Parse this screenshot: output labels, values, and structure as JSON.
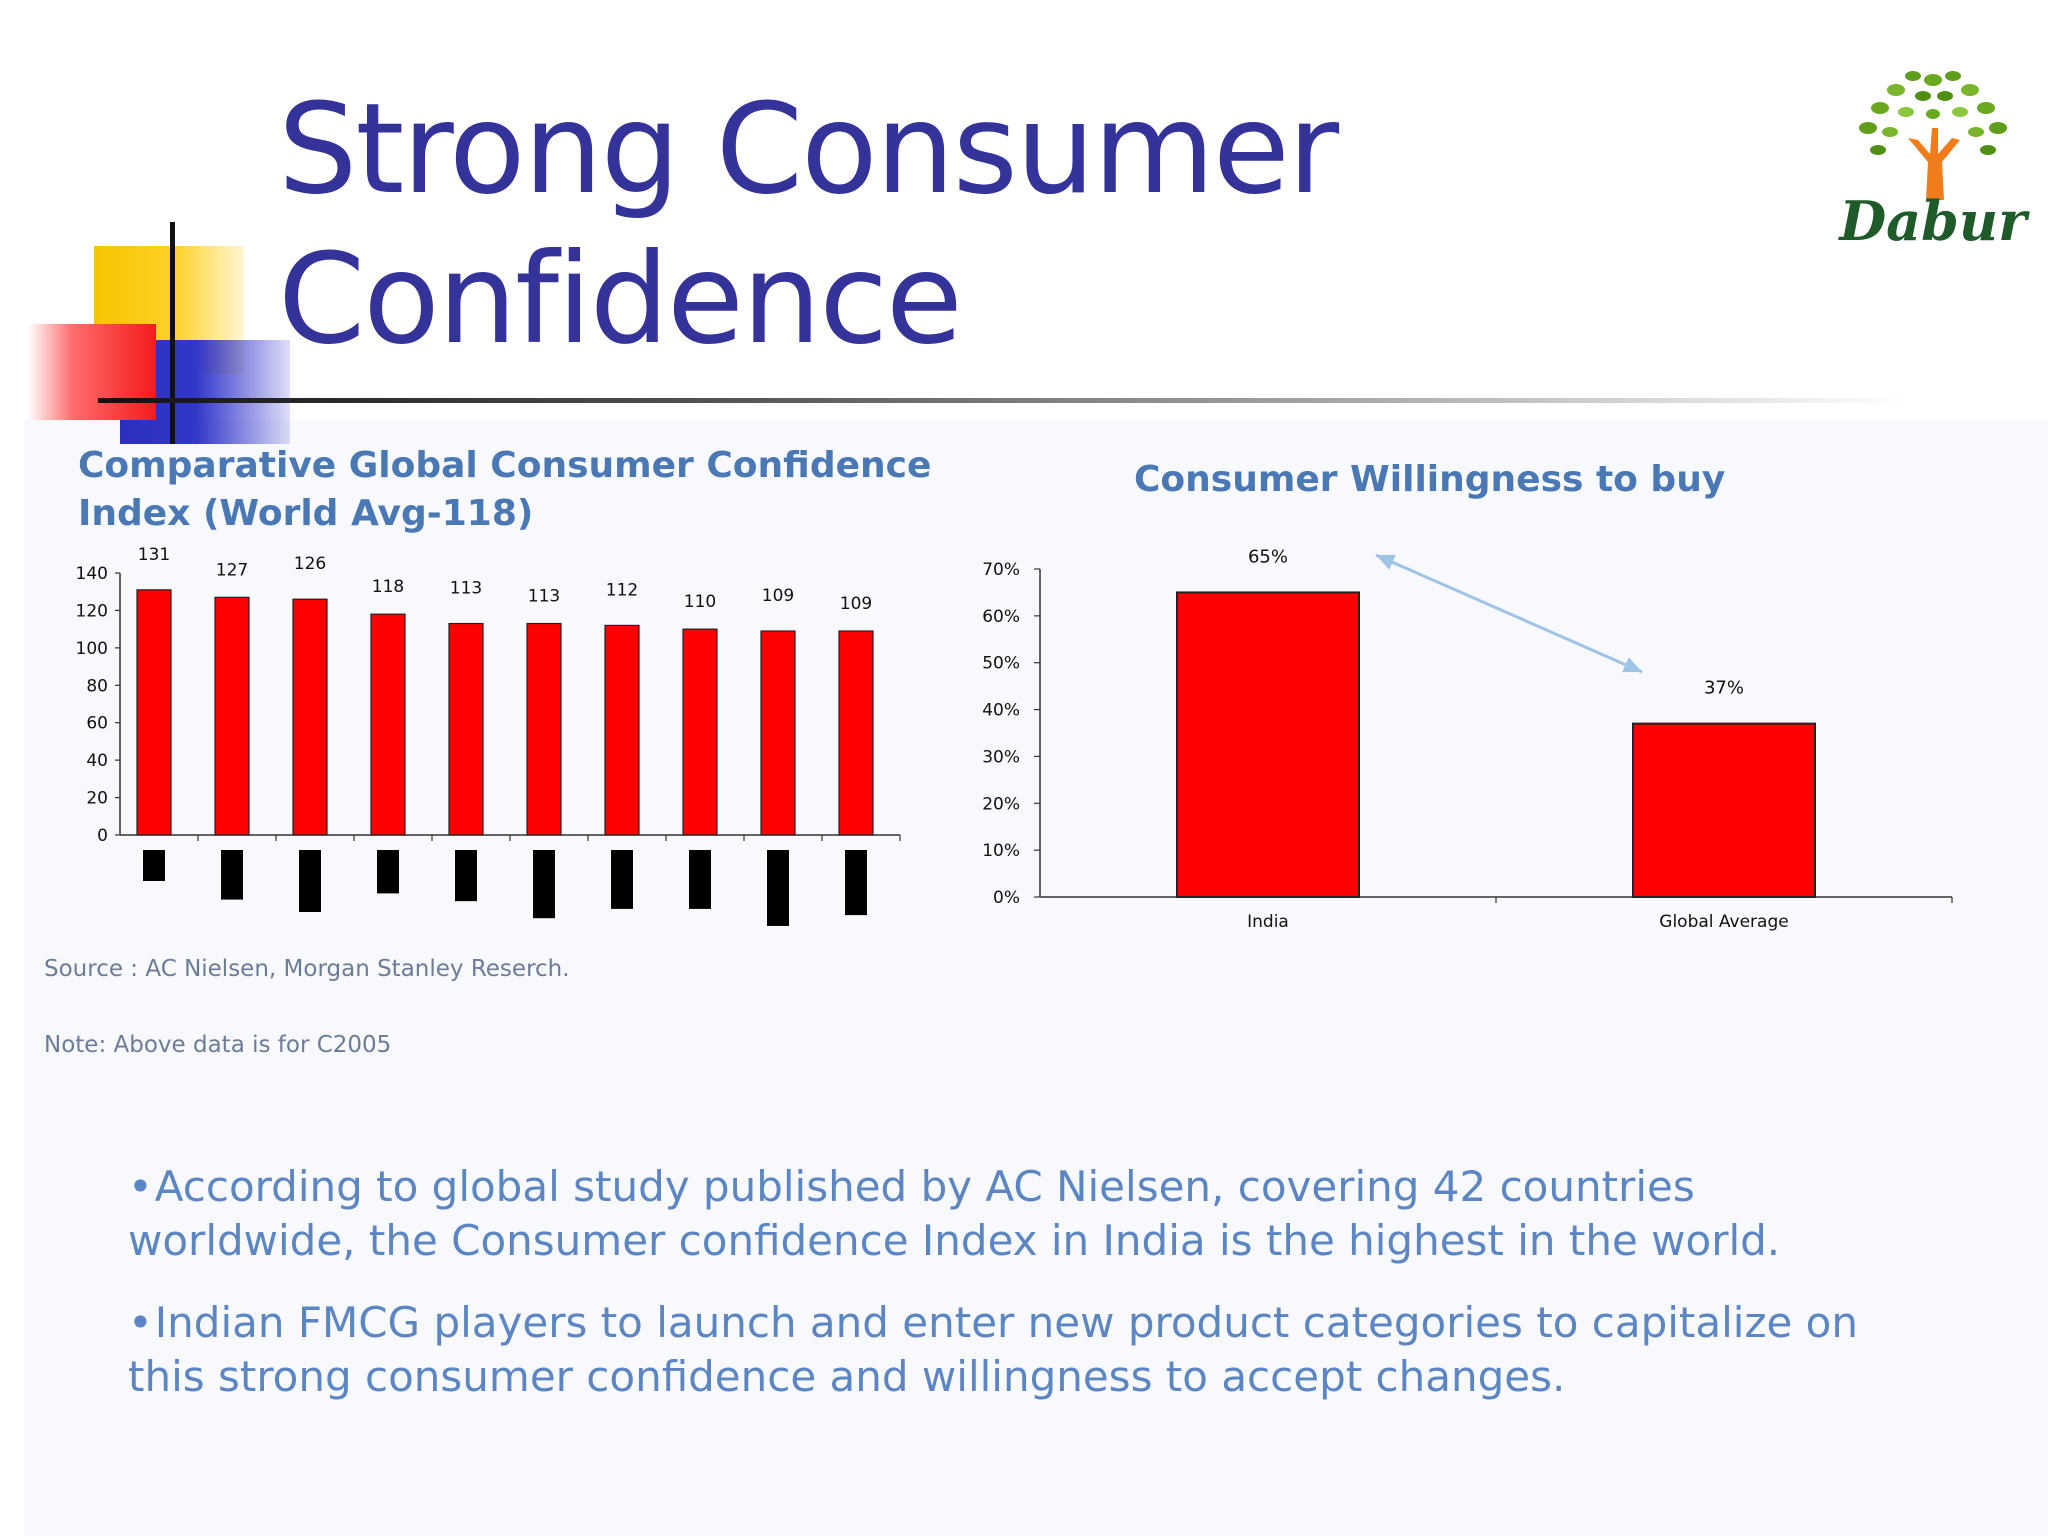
{
  "slide": {
    "title": "Strong Consumer Confidence",
    "logo_text": "Dabur"
  },
  "left_chart": {
    "title": "Comparative Global Consumer Confidence Index (World Avg-118)",
    "source": "Source : AC Nielsen, Morgan Stanley Reserch.",
    "note": "Note: Above data is for C2005"
  },
  "right_chart": {
    "title": "Consumer Willingness to buy"
  },
  "bullets": [
    "According to global study published by AC Nielsen, covering 42 countries worldwide, the Consumer confidence Index in India is the highest in the world.",
    "Indian FMCG players to launch and enter new product categories to capitalize on this strong consumer confidence and willingness to accept changes."
  ],
  "colors": {
    "title": "#333399",
    "bar": "#ff0000",
    "chart_title": "#4a78b5",
    "bullet_text": "#5b86c3",
    "arrow": "#9ec3e6"
  },
  "chart_data": [
    {
      "type": "bar",
      "title": "Comparative Global Consumer Confidence Index (World Avg-118)",
      "categories": [
        "",
        "",
        "",
        "",
        "",
        "",
        "",
        "",
        "",
        ""
      ],
      "values": [
        131,
        127,
        126,
        118,
        113,
        113,
        112,
        110,
        109,
        109
      ],
      "value_labels": [
        "131",
        "127",
        "126",
        "118",
        "113",
        "113",
        "112",
        "110",
        "109",
        "109"
      ],
      "ylim": [
        0,
        140
      ],
      "yticks": [
        "0",
        "20",
        "40",
        "60",
        "80",
        "100",
        "120",
        "140"
      ],
      "below_axis_marks": [
        20,
        32,
        40,
        28,
        33,
        44,
        38,
        38,
        49,
        42
      ],
      "grid": false,
      "legend": "none"
    },
    {
      "type": "bar",
      "title": "Consumer Willingness to buy",
      "categories": [
        "India",
        "Global Average"
      ],
      "values": [
        65,
        37
      ],
      "value_labels": [
        "65%",
        "37%"
      ],
      "ylim": [
        0,
        70
      ],
      "yticks": [
        "0%",
        "10%",
        "20%",
        "30%",
        "40%",
        "50%",
        "60%",
        "70%"
      ],
      "annotation": "arrow from India bar to Global Average bar",
      "grid": false,
      "legend": "none"
    }
  ]
}
